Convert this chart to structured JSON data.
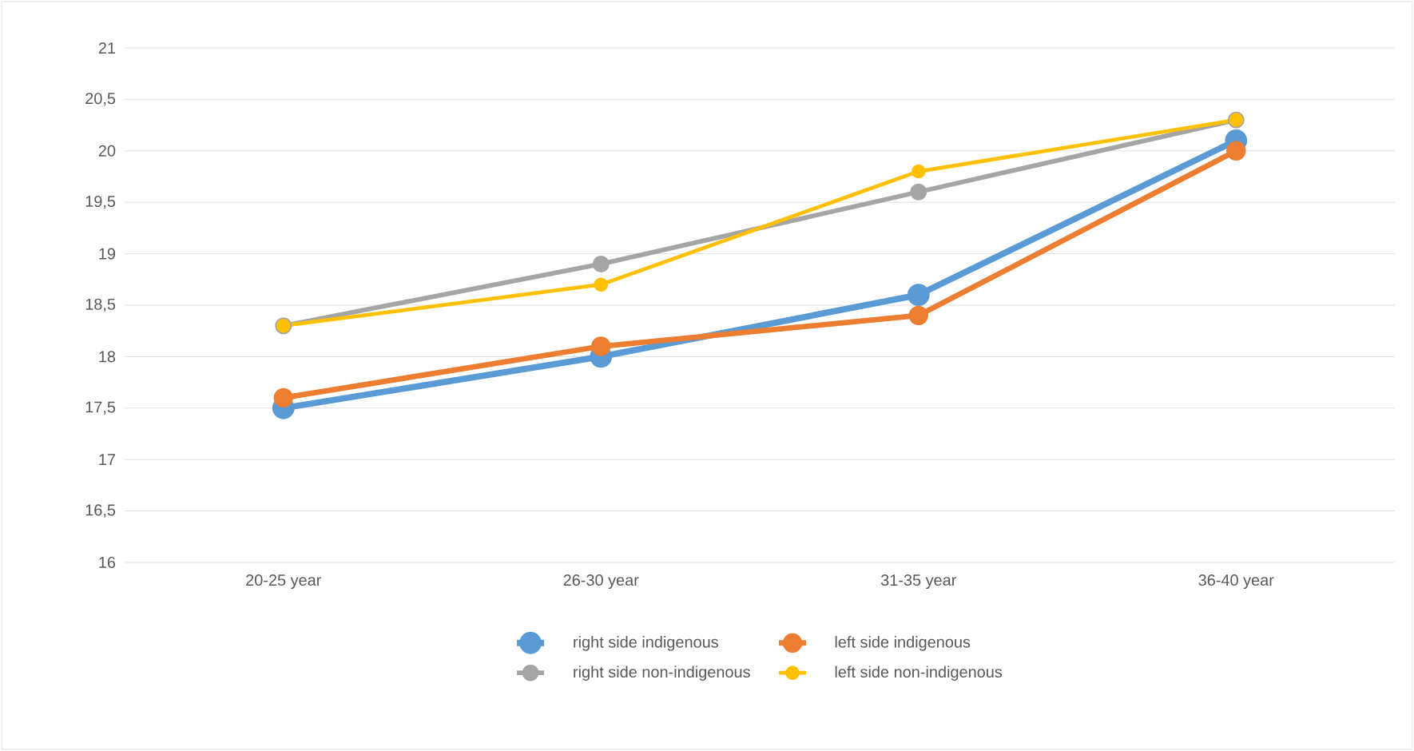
{
  "chart_data": {
    "type": "line",
    "categories": [
      "20-25 year",
      "26-30 year",
      "31-35 year",
      "36-40 year"
    ],
    "series": [
      {
        "name": "right side indigenous",
        "color": "#5b9bd5",
        "values": [
          17.5,
          18.0,
          18.6,
          20.1
        ]
      },
      {
        "name": "left side indigenous",
        "color": "#ed7d31",
        "values": [
          17.6,
          18.1,
          18.4,
          20.0
        ]
      },
      {
        "name": "right side non-indigenous",
        "color": "#a5a5a5",
        "values": [
          18.3,
          18.9,
          19.6,
          20.3
        ]
      },
      {
        "name": "left side non-indigenous",
        "color": "#ffc000",
        "values": [
          18.3,
          18.7,
          19.8,
          20.3
        ]
      }
    ],
    "ylim": [
      16,
      21
    ],
    "yticks": [
      16,
      {
        "value": 16.5,
        "label": "16,5"
      },
      17,
      {
        "value": 17.5,
        "label": "17,5"
      },
      18,
      {
        "value": 18.5,
        "label": "18,5"
      },
      19,
      {
        "value": 19.5,
        "label": "19,5"
      },
      20,
      {
        "value": 20.5,
        "label": "20,5"
      },
      21
    ],
    "grid": "y",
    "legend": "bottom",
    "marker": "circle",
    "line_style": "solid"
  }
}
